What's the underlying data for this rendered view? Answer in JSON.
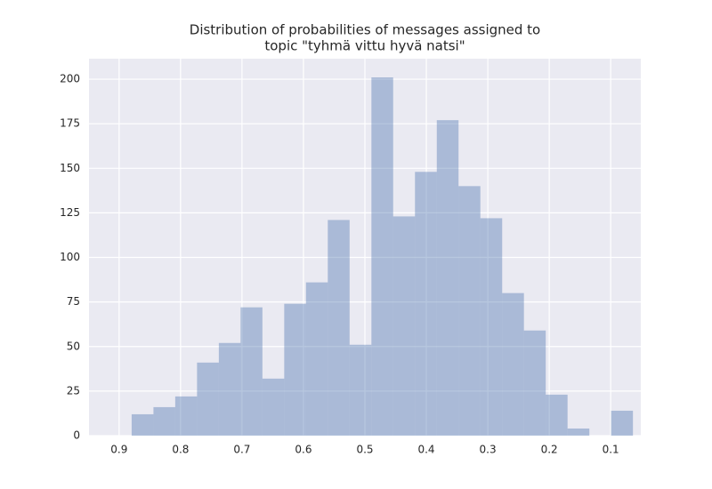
{
  "chart_data": {
    "type": "histogram",
    "title": [
      "Distribution of probabilities of messages assigned to",
      "topic \"tyhmä vittu hyvä natsi\""
    ],
    "bins": [
      0.0638,
      0.0993,
      0.1347,
      0.1702,
      0.2057,
      0.2412,
      0.2766,
      0.3121,
      0.3476,
      0.383,
      0.4185,
      0.454,
      0.4894,
      0.5249,
      0.5604,
      0.5959,
      0.6313,
      0.6668,
      0.7023,
      0.7377,
      0.7732,
      0.8087,
      0.8441,
      0.8796
    ],
    "values": [
      14,
      0,
      4,
      23,
      59,
      80,
      122,
      140,
      177,
      148,
      123,
      201,
      51,
      121,
      86,
      74,
      32,
      72,
      52,
      41,
      22,
      16,
      12
    ],
    "color": "#4c72b0",
    "opacity": 0.4,
    "xlim": [
      0.949,
      0.051
    ],
    "xticks": [
      0.9,
      0.8,
      0.7,
      0.6,
      0.5,
      0.4,
      0.3,
      0.2,
      0.1
    ],
    "ylim": [
      0,
      211.5
    ],
    "yticks": [
      0,
      25,
      50,
      75,
      100,
      125,
      150,
      175,
      200
    ],
    "grid": true
  }
}
